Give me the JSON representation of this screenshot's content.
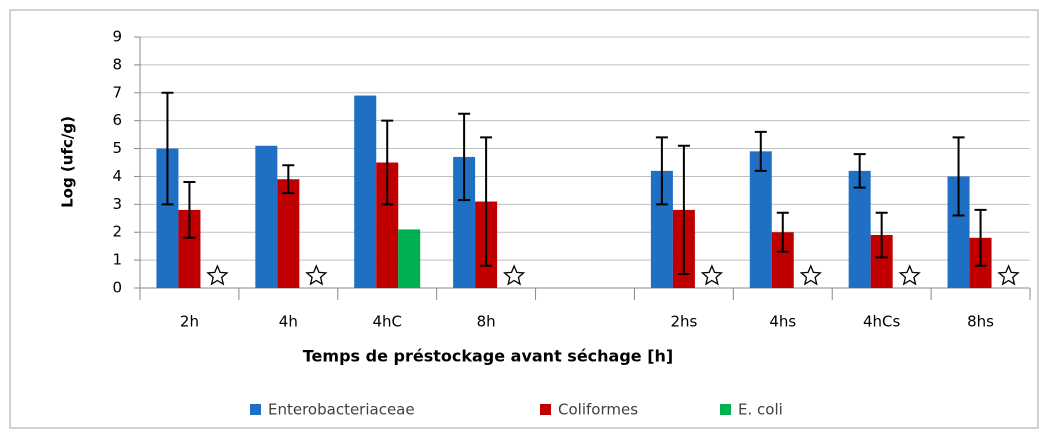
{
  "chart_data": {
    "type": "bar",
    "categories": [
      "2h",
      "4h",
      "4hC",
      "8h",
      null,
      "2hs",
      "4hs",
      "4hCs",
      "8hs"
    ],
    "series": [
      {
        "name": "Enterobacteriaceae",
        "color": "#1f6fc5",
        "values": [
          5.0,
          5.1,
          6.9,
          4.7,
          null,
          4.2,
          4.9,
          4.2,
          4.0
        ],
        "errors": [
          2.0,
          null,
          null,
          1.55,
          null,
          1.2,
          0.7,
          0.6,
          1.4
        ]
      },
      {
        "name": "Coliformes",
        "color": "#c00000",
        "values": [
          2.8,
          3.9,
          4.5,
          3.1,
          null,
          2.8,
          2.0,
          1.9,
          1.8
        ],
        "errors": [
          1.0,
          0.5,
          1.5,
          2.3,
          null,
          2.3,
          0.7,
          0.8,
          1.0
        ]
      },
      {
        "name": "E. coli",
        "color": "#00b050",
        "values": [
          null,
          null,
          2.1,
          null,
          null,
          null,
          null,
          null,
          null
        ],
        "errors": [
          null,
          null,
          null,
          null,
          null,
          null,
          null,
          null,
          null
        ]
      }
    ],
    "xlabel": "Temps de préstockage avant séchage [h]",
    "ylabel": "Log (ufc/g)",
    "ylim": [
      0,
      9
    ],
    "yticks": [
      0,
      1,
      2,
      3,
      4,
      5,
      6,
      7,
      8,
      9
    ],
    "grid": true,
    "legend": "bottom"
  }
}
